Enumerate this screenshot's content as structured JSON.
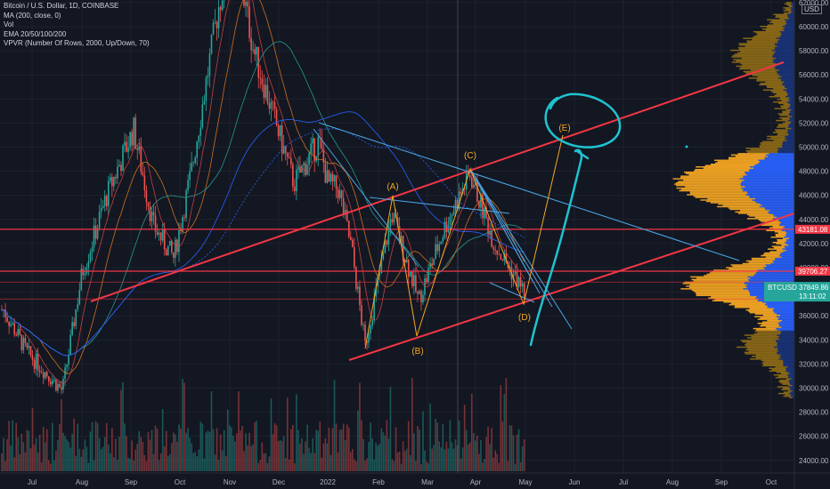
{
  "legend": {
    "title": "Bitcoin / U.S. Dollar, 1D, COINBASE",
    "ma": "MA (200, close, 0)",
    "vol": "Vol",
    "ema": "EMA 20/50/100/200",
    "vpvr": "VPVR (Number Of Rows, 2000, Up/Down, 70)"
  },
  "currency": "USD",
  "chart_data": {
    "type": "candlestick",
    "symbol": "Bitcoin / U.S. Dollar",
    "interval": "1D",
    "exchange": "COINBASE",
    "ylim": [
      22500,
      62000
    ],
    "x_ticks": [
      "Jul",
      "Aug",
      "Sep",
      "Oct",
      "Nov",
      "Dec",
      "2022",
      "Feb",
      "Mar",
      "Apr",
      "May",
      "Jun",
      "Jul",
      "Aug",
      "Sep",
      "Oct"
    ],
    "y_ticks": [
      24000,
      26000,
      28000,
      30000,
      32000,
      34000,
      36000,
      38000,
      40000,
      42000,
      44000,
      46000,
      48000,
      50000,
      52000,
      54000,
      56000,
      58000,
      60000,
      62000
    ],
    "price_path": [
      [
        "Jul",
        36500
      ],
      [
        "Jul",
        33000
      ],
      [
        "Jul",
        29800
      ],
      [
        "Aug",
        39500
      ],
      [
        "Aug",
        46000
      ],
      [
        "Sep",
        51500
      ],
      [
        "Sep",
        43500
      ],
      [
        "Sep",
        40800
      ],
      [
        "Oct",
        48000
      ],
      [
        "Oct",
        61500
      ],
      [
        "Nov",
        67000
      ],
      [
        "Nov",
        58000
      ],
      [
        "Dec",
        47000
      ],
      [
        "Dec",
        50500
      ],
      [
        "Dec",
        47000
      ],
      [
        "2022",
        46500
      ],
      [
        "2022",
        41500
      ],
      [
        "Feb",
        33500
      ],
      [
        "Feb",
        44500
      ],
      [
        "Mar",
        37300
      ],
      [
        "Mar",
        43500
      ],
      [
        "Apr",
        47800
      ],
      [
        "Apr",
        42000
      ],
      [
        "May",
        37849
      ]
    ],
    "horizontal_levels": [
      {
        "price": 43181.08,
        "label": "43181.08",
        "color": "#f23645"
      },
      {
        "price": 39706.27,
        "label": "39706.27",
        "color": "#f23645"
      }
    ],
    "current_price": {
      "label": "BTCUSD",
      "value": "37849.86",
      "countdown": "13:11:02",
      "color": "#26a69a"
    },
    "wave_labels": [
      "(A)",
      "(B)",
      "(C)",
      "(D)",
      "(E)"
    ],
    "wave_points": [
      {
        "label": "(A)",
        "date": "Feb",
        "price": 45700
      },
      {
        "label": "(B)",
        "date": "Mar",
        "price": 34100
      },
      {
        "label": "(C)",
        "date": "Apr",
        "price": 48200
      },
      {
        "label": "(D)",
        "date": "May",
        "price": 36800
      },
      {
        "label": "(E)",
        "date": "Jun",
        "price": 50800
      }
    ],
    "volume_profile": {
      "label": "VPVR",
      "up_color": "#2962ff",
      "down_color": "#f5b823"
    },
    "colors": {
      "up": "#26a69a",
      "down": "#ef5350",
      "trendline": "#f23645",
      "fan": "#4aa3df",
      "wave": "#f5a623",
      "annotation": "#1fc3d0"
    }
  }
}
